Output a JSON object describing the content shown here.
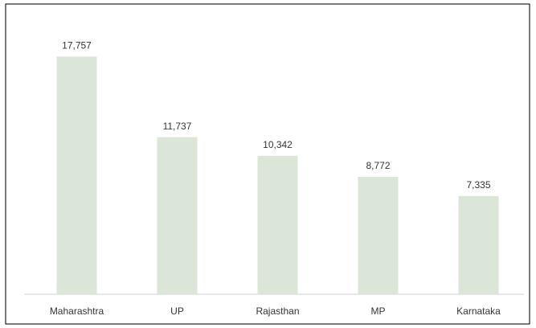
{
  "chart_data": {
    "type": "bar",
    "categories": [
      "Maharashtra",
      "UP",
      "Rajasthan",
      "MP",
      "Karnataka"
    ],
    "values": [
      17757,
      11737,
      10342,
      8772,
      7335
    ],
    "value_labels": [
      "17,757",
      "11,737",
      "10,342",
      "8,772",
      "7,335"
    ],
    "color": "#dbe5d8",
    "ylim": [
      0,
      20000
    ]
  }
}
